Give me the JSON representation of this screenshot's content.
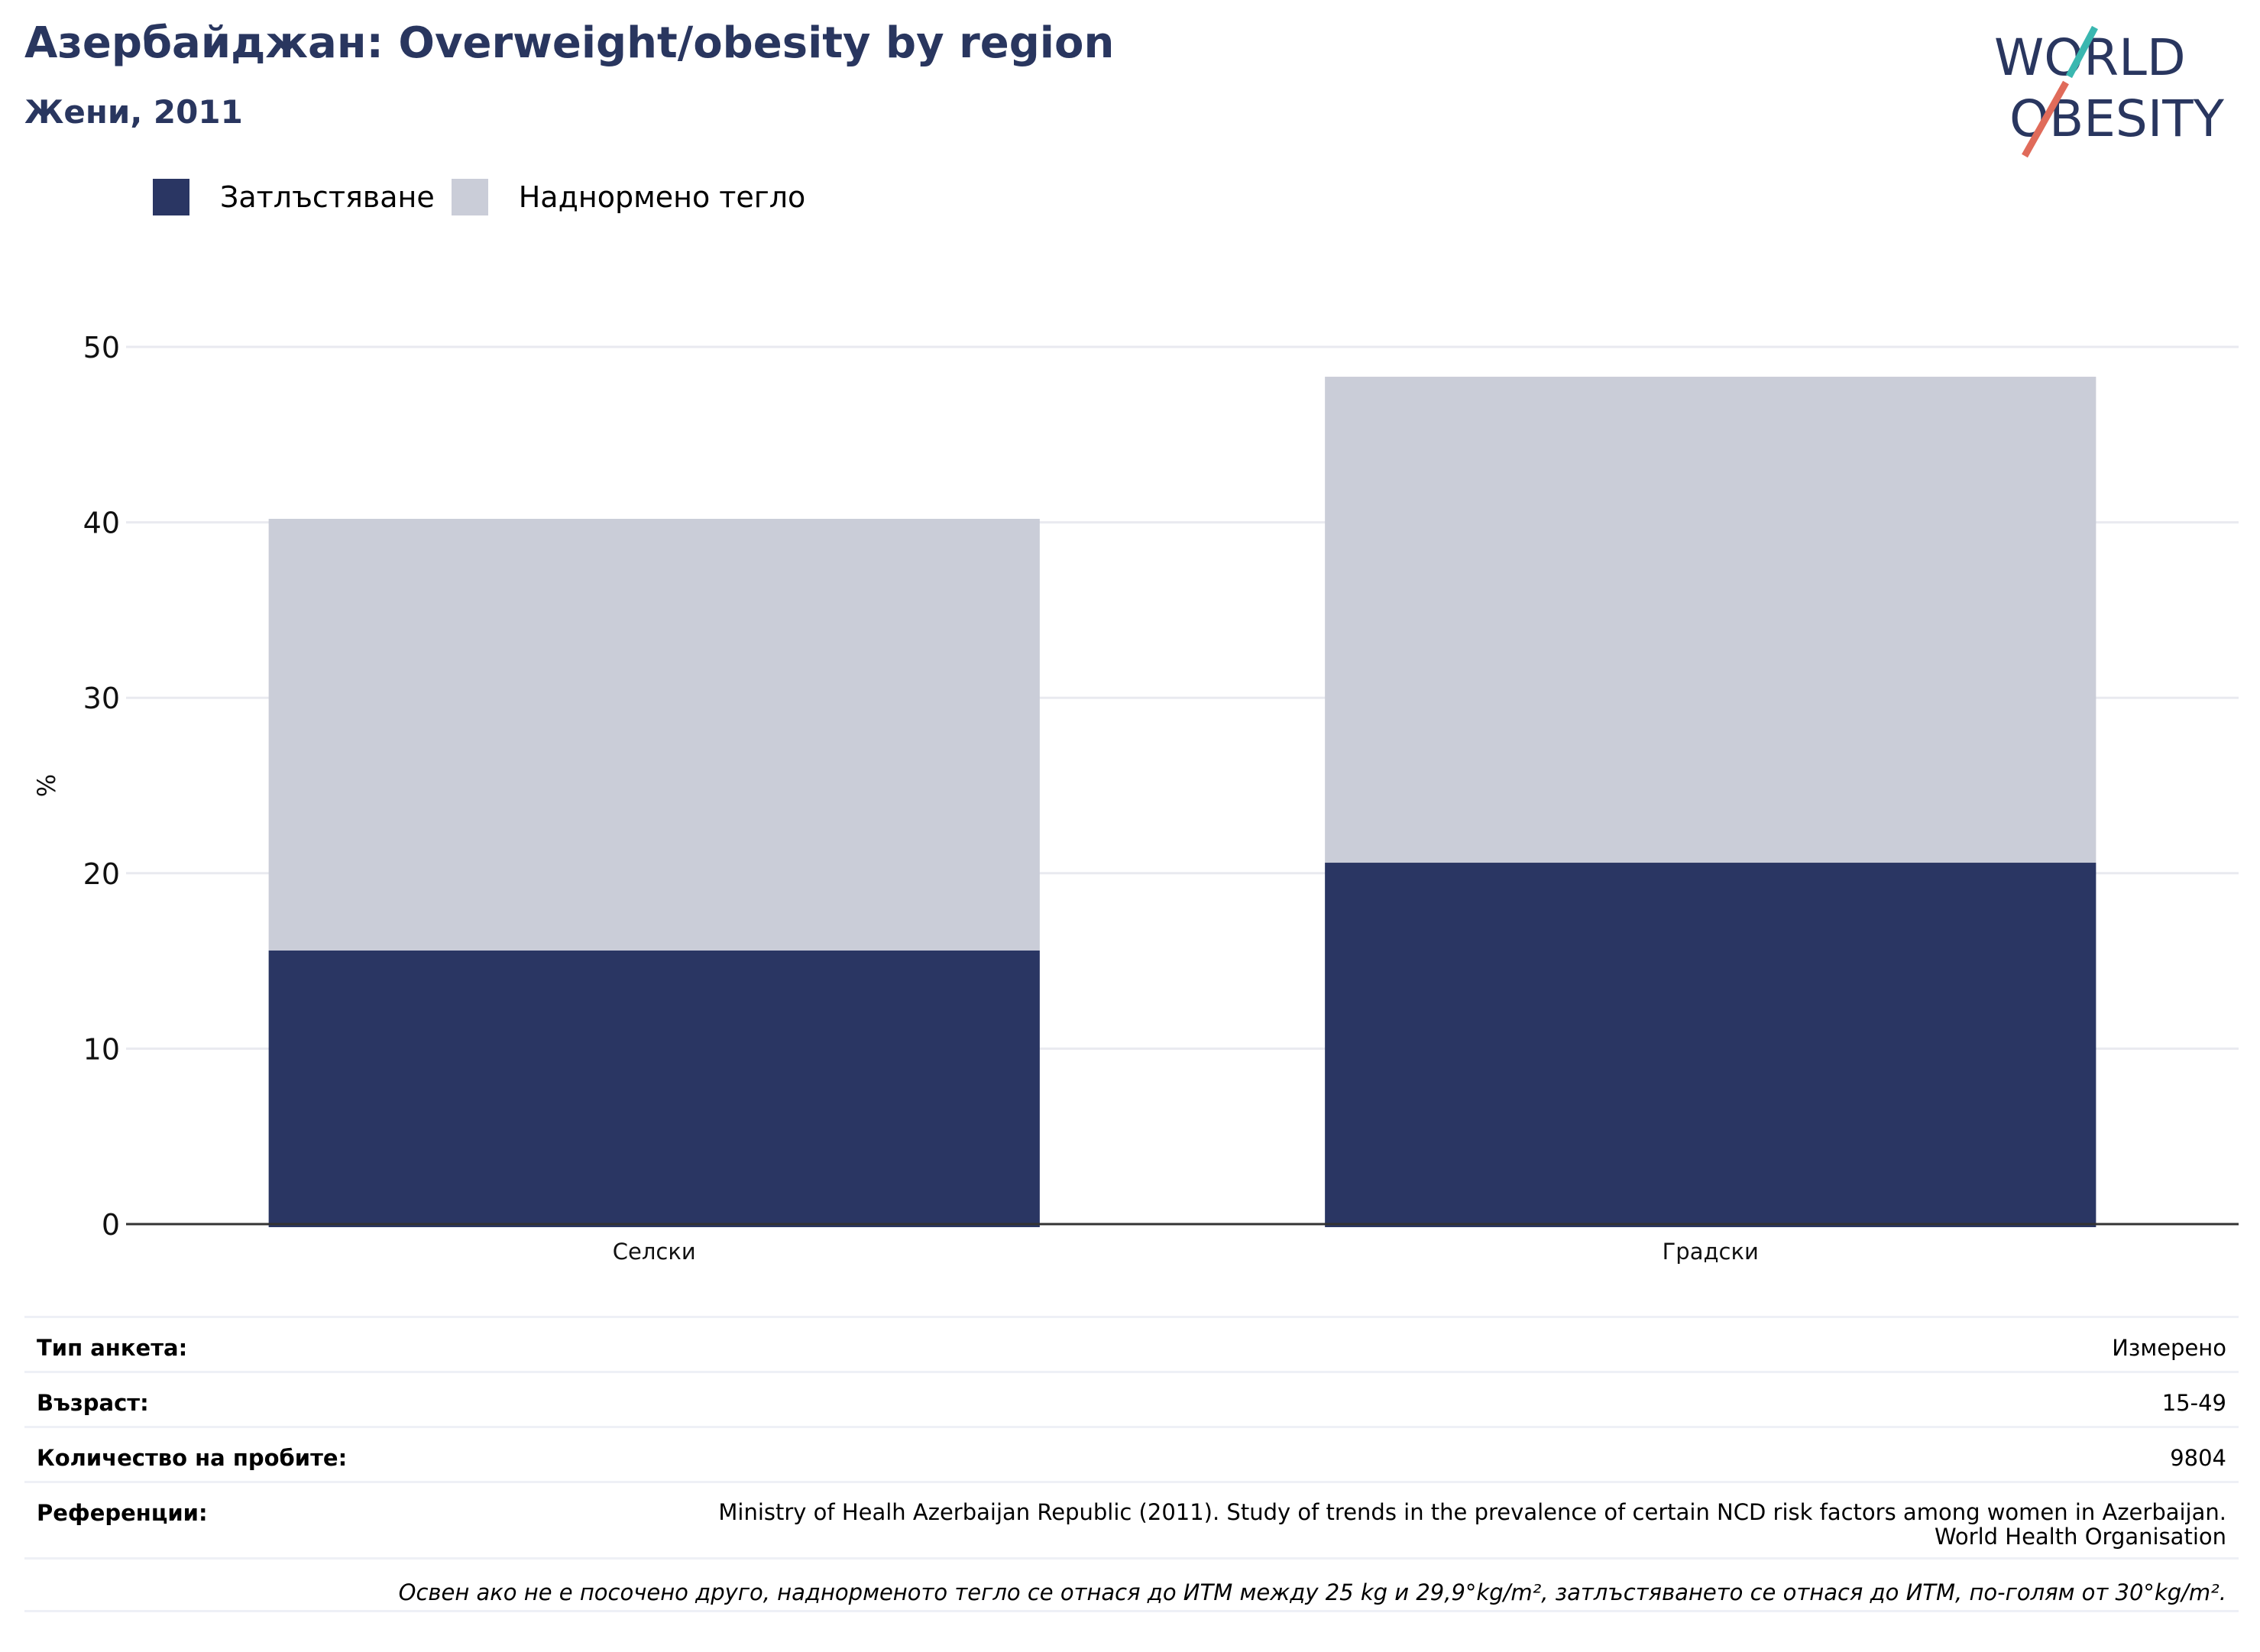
{
  "header": {
    "title": "Азербайджан: Overweight/obesity by region",
    "subtitle": "Жени, 2011"
  },
  "logo": {
    "line1": "WORLD",
    "line2": "OBESITY"
  },
  "colors": {
    "obesity": "#2a3663",
    "overweight": "#cacdd8",
    "text_dark": "#29365f",
    "grid": "#e9eaf0",
    "axis": "#333333"
  },
  "chart_data": {
    "type": "bar",
    "stacked": true,
    "categories": [
      "Селски",
      "Градски"
    ],
    "series": [
      {
        "name": "Затлъстяване",
        "values": [
          15.6,
          20.6
        ]
      },
      {
        "name": "Наднормено тегло",
        "values": [
          24.6,
          27.7
        ]
      }
    ],
    "ylabel": "%",
    "ylim": [
      0,
      50
    ],
    "yticks": [
      0,
      10,
      20,
      30,
      40,
      50
    ],
    "grid": true,
    "legend": "top-left"
  },
  "info": {
    "survey_type_label": "Тип анкета:",
    "survey_type_value": "Измерено",
    "age_label": "Възраст:",
    "age_value": "15-49",
    "sample_label": "Количество на пробите:",
    "sample_value": "9804",
    "refs_label": "Референции:",
    "refs_line1": "Ministry of Healh Azerbaijan Republic (2011). Study of trends in the prevalence of certain NCD risk factors among women in Azerbaijan.",
    "refs_line2": "World Health Organisation",
    "note": "Освен ако не е посочено друго, наднорменото тегло се отнася до ИТМ между 25 kg и 29,9°kg/m², затлъстяването се отнася до ИТМ, по-голям от 30°kg/m²."
  }
}
